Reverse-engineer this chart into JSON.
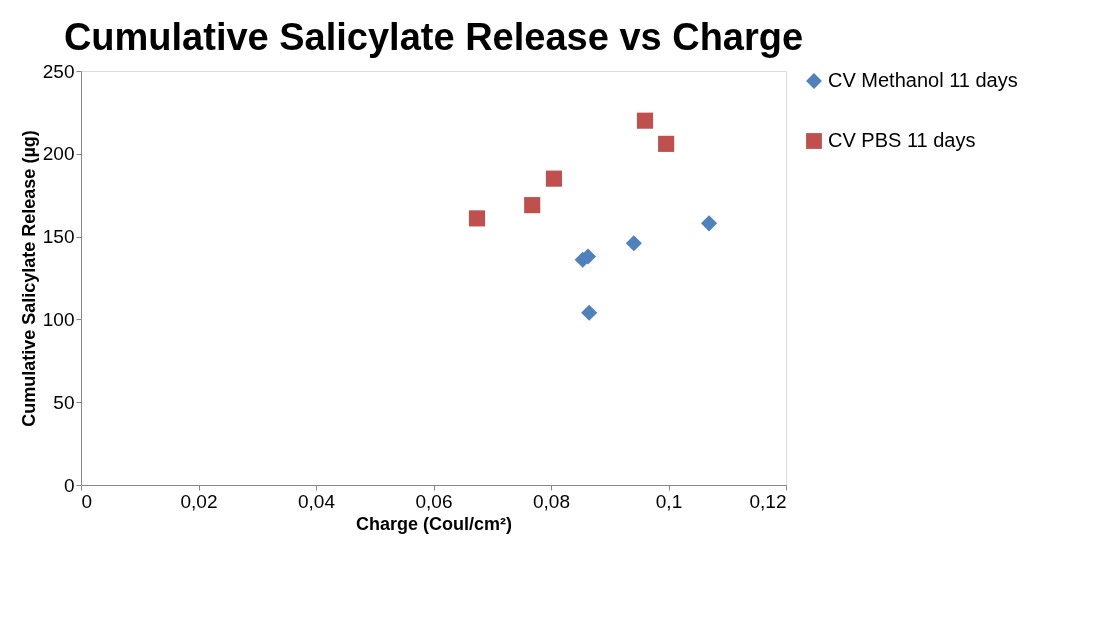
{
  "chart_data": {
    "type": "scatter",
    "title": "Cumulative Salicylate Release vs Charge",
    "xlabel": "Charge (Coul/cm²)",
    "ylabel": "Cumulative Salicylate Release (µg)",
    "xlim": [
      0,
      0.12
    ],
    "xticks": [
      0,
      {
        "value": 0.02,
        "label": "0,02"
      },
      {
        "value": 0.04,
        "label": "0,04"
      },
      {
        "value": 0.06,
        "label": "0,06"
      },
      {
        "value": 0.08,
        "label": "0,08"
      },
      {
        "value": 0.1,
        "label": "0,1"
      },
      {
        "value": 0.12,
        "label": "0,12"
      }
    ],
    "ylim": [
      0,
      250
    ],
    "yticks": [
      0,
      50,
      100,
      150,
      200,
      250
    ],
    "grid": false,
    "legend": "right",
    "series": [
      {
        "name": "CV Methanol 11 days",
        "color": "#4f81bd",
        "marker": "diamond",
        "x": [
          0.0854,
          0.0863,
          0.0865,
          0.0941,
          0.1069
        ],
        "values": [
          136,
          138,
          104,
          146,
          158
        ]
      },
      {
        "name": "CV PBS 11 days",
        "color": "#c0504d",
        "marker": "square",
        "x": [
          0.0674,
          0.0768,
          0.0805,
          0.096,
          0.0996
        ],
        "values": [
          161,
          169,
          185,
          220,
          206
        ]
      }
    ]
  }
}
